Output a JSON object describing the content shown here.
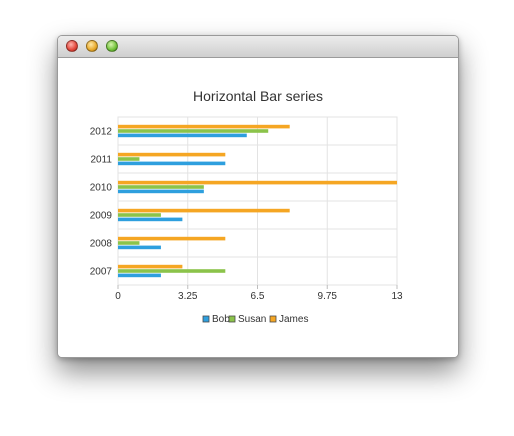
{
  "window": {
    "controls": [
      "close",
      "minimize",
      "zoom"
    ]
  },
  "chart_data": {
    "type": "bar",
    "orientation": "horizontal",
    "title": "Horizontal Bar series",
    "categories": [
      "2007",
      "2008",
      "2009",
      "2010",
      "2011",
      "2012"
    ],
    "series": [
      {
        "name": "Bob",
        "color": "#2e9fde",
        "values": [
          2,
          2,
          3,
          4,
          5,
          6
        ]
      },
      {
        "name": "Susan",
        "color": "#8bc34a",
        "values": [
          5,
          1,
          2,
          4,
          1,
          7
        ]
      },
      {
        "name": "James",
        "color": "#f5a623",
        "values": [
          3,
          5,
          8,
          13,
          5,
          8
        ]
      }
    ],
    "xlim": [
      0,
      13
    ],
    "xticks": [
      "0",
      "3.25",
      "6.5",
      "9.75",
      "13"
    ],
    "grid": true,
    "legend": "bottom"
  }
}
